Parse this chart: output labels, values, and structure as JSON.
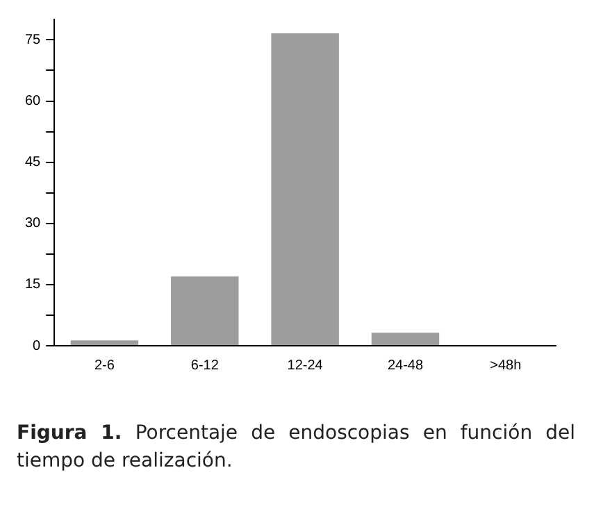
{
  "chart_data": {
    "type": "bar",
    "categories": [
      "2-6",
      "6-12",
      "12-24",
      "24-48",
      ">48h"
    ],
    "values": [
      1.3,
      17,
      76.6,
      3.2,
      0
    ],
    "color": "#9d9d9d",
    "ylim": [
      0,
      80
    ],
    "yticks": [
      0,
      {
        "value": 7.5,
        "label": null
      },
      15,
      {
        "value": 22.5,
        "label": null
      },
      30,
      {
        "value": 37.5,
        "label": null
      },
      45,
      {
        "value": 52.5,
        "label": null
      },
      60,
      {
        "value": 67.5,
        "label": null
      },
      75
    ],
    "grid": false,
    "legend": false,
    "annotations": [
      "Figura 1.",
      "Porcentaje de endoscopias en función del tiempo de realización."
    ]
  }
}
